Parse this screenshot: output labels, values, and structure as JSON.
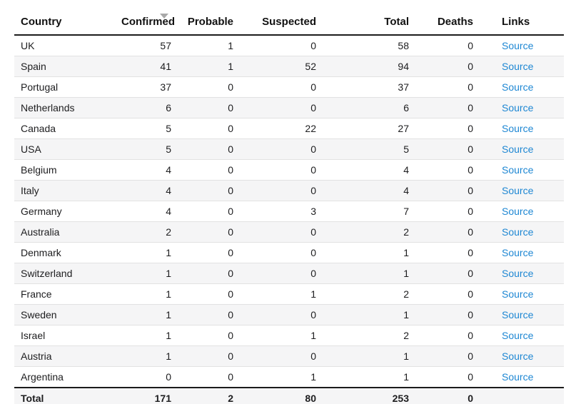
{
  "colors": {
    "link_blue": "#1e87d3",
    "zebra_stripe": "#f5f5f6",
    "header_border": "#1c1c1c",
    "row_border": "#e2e2e2",
    "footer_bottom_border": "#d2d2d2",
    "sort_icon_gray": "#a9a9a9"
  },
  "table": {
    "sort": {
      "column": "Confirmed",
      "direction": "desc",
      "icon": "triangle-down"
    },
    "columns": [
      {
        "key": "country",
        "label": "Country",
        "align": "left"
      },
      {
        "key": "confirmed",
        "label": "Confirmed",
        "align": "right"
      },
      {
        "key": "probable",
        "label": "Probable",
        "align": "right"
      },
      {
        "key": "suspected",
        "label": "Suspected",
        "align": "right"
      },
      {
        "key": "total",
        "label": "Total",
        "align": "right"
      },
      {
        "key": "deaths",
        "label": "Deaths",
        "align": "right"
      },
      {
        "key": "links",
        "label": "Links",
        "align": "left"
      }
    ],
    "footer": {
      "label": "Total",
      "confirmed": 171,
      "probable": 2,
      "suspected": 80,
      "total": 253,
      "deaths": 0,
      "links": ""
    }
  },
  "chart_data": {
    "type": "table",
    "columns": [
      "Country",
      "Confirmed",
      "Probable",
      "Suspected",
      "Total",
      "Deaths",
      "Links"
    ],
    "rows": [
      [
        "UK",
        57,
        1,
        0,
        58,
        0,
        "Source"
      ],
      [
        "Spain",
        41,
        1,
        52,
        94,
        0,
        "Source"
      ],
      [
        "Portugal",
        37,
        0,
        0,
        37,
        0,
        "Source"
      ],
      [
        "Netherlands",
        6,
        0,
        0,
        6,
        0,
        "Source"
      ],
      [
        "Canada",
        5,
        0,
        22,
        27,
        0,
        "Source"
      ],
      [
        "USA",
        5,
        0,
        0,
        5,
        0,
        "Source"
      ],
      [
        "Belgium",
        4,
        0,
        0,
        4,
        0,
        "Source"
      ],
      [
        "Italy",
        4,
        0,
        0,
        4,
        0,
        "Source"
      ],
      [
        "Germany",
        4,
        0,
        3,
        7,
        0,
        "Source"
      ],
      [
        "Australia",
        2,
        0,
        0,
        2,
        0,
        "Source"
      ],
      [
        "Denmark",
        1,
        0,
        0,
        1,
        0,
        "Source"
      ],
      [
        "Switzerland",
        1,
        0,
        0,
        1,
        0,
        "Source"
      ],
      [
        "France",
        1,
        0,
        1,
        2,
        0,
        "Source"
      ],
      [
        "Sweden",
        1,
        0,
        0,
        1,
        0,
        "Source"
      ],
      [
        "Israel",
        1,
        0,
        1,
        2,
        0,
        "Source"
      ],
      [
        "Austria",
        1,
        0,
        0,
        1,
        0,
        "Source"
      ],
      [
        "Argentina",
        0,
        0,
        1,
        1,
        0,
        "Source"
      ]
    ],
    "footer_row": [
      "Total",
      171,
      2,
      80,
      253,
      0,
      ""
    ]
  }
}
